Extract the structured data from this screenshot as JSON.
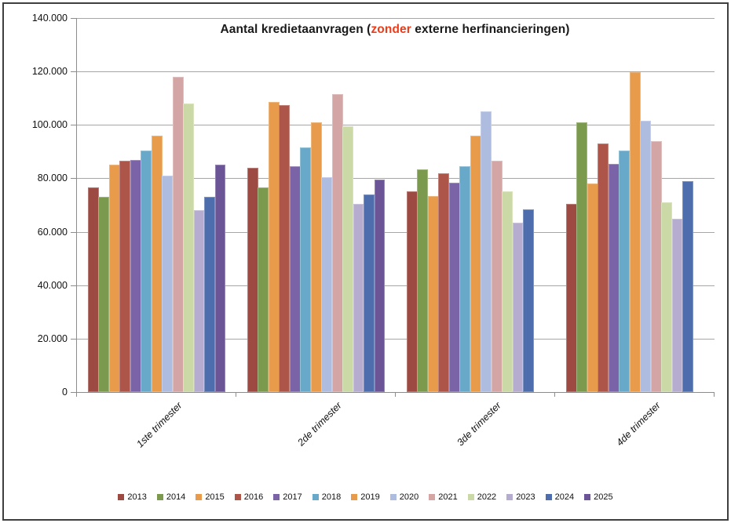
{
  "title": {
    "prefix": "Aantal kredietaanvragen (",
    "highlight": "zonder",
    "suffix": " externe herfinancieringen)",
    "highlight_color": "#ed3c19"
  },
  "chart_data": {
    "type": "bar",
    "title": "Aantal kredietaanvragen (zonder externe herfinancieringen)",
    "categories": [
      "1ste trimester",
      "2de trimester",
      "3de trimester",
      "4de trimester"
    ],
    "series": [
      {
        "name": "2013",
        "color": "#9c4a42",
        "values": [
          76500,
          84000,
          75000,
          70500
        ]
      },
      {
        "name": "2014",
        "color": "#7b9a4d",
        "values": [
          73000,
          76500,
          83500,
          101000
        ]
      },
      {
        "name": "2015",
        "color": "#e89b4b",
        "values": [
          85000,
          108500,
          73500,
          78000
        ]
      },
      {
        "name": "2016",
        "color": "#ae5549",
        "values": [
          86500,
          107500,
          82000,
          93000
        ]
      },
      {
        "name": "2017",
        "color": "#7a63a6",
        "values": [
          87000,
          84500,
          78500,
          85500
        ]
      },
      {
        "name": "2018",
        "color": "#68a9c9",
        "values": [
          90500,
          91500,
          84500,
          90500
        ]
      },
      {
        "name": "2019",
        "color": "#e89b4b",
        "values": [
          96000,
          101000,
          96000,
          119800
        ]
      },
      {
        "name": "2020",
        "color": "#aebce0",
        "values": [
          81000,
          80500,
          105000,
          101500
        ]
      },
      {
        "name": "2021",
        "color": "#d3a5a5",
        "values": [
          118000,
          111500,
          86500,
          94000
        ]
      },
      {
        "name": "2022",
        "color": "#cbd9a6",
        "values": [
          108000,
          99500,
          75000,
          71000
        ]
      },
      {
        "name": "2023",
        "color": "#b5accf",
        "values": [
          68000,
          70500,
          63500,
          65000
        ]
      },
      {
        "name": "2024",
        "color": "#4d6dad",
        "values": [
          73000,
          74000,
          68500,
          79000
        ]
      },
      {
        "name": "2025",
        "color": "#6b5596",
        "values": [
          85000,
          79500,
          null,
          null
        ]
      }
    ],
    "ylim": [
      0,
      140000
    ],
    "yticks": [
      {
        "v": 0,
        "label": "0"
      },
      {
        "v": 20000,
        "label": "20.000"
      },
      {
        "v": 40000,
        "label": "40.000"
      },
      {
        "v": 60000,
        "label": "60.000"
      },
      {
        "v": 80000,
        "label": "80.000"
      },
      {
        "v": 100000,
        "label": "100.000"
      },
      {
        "v": 120000,
        "label": "120.000"
      },
      {
        "v": 140000,
        "label": "140.000"
      }
    ],
    "grid": true,
    "legend_position": "bottom"
  }
}
